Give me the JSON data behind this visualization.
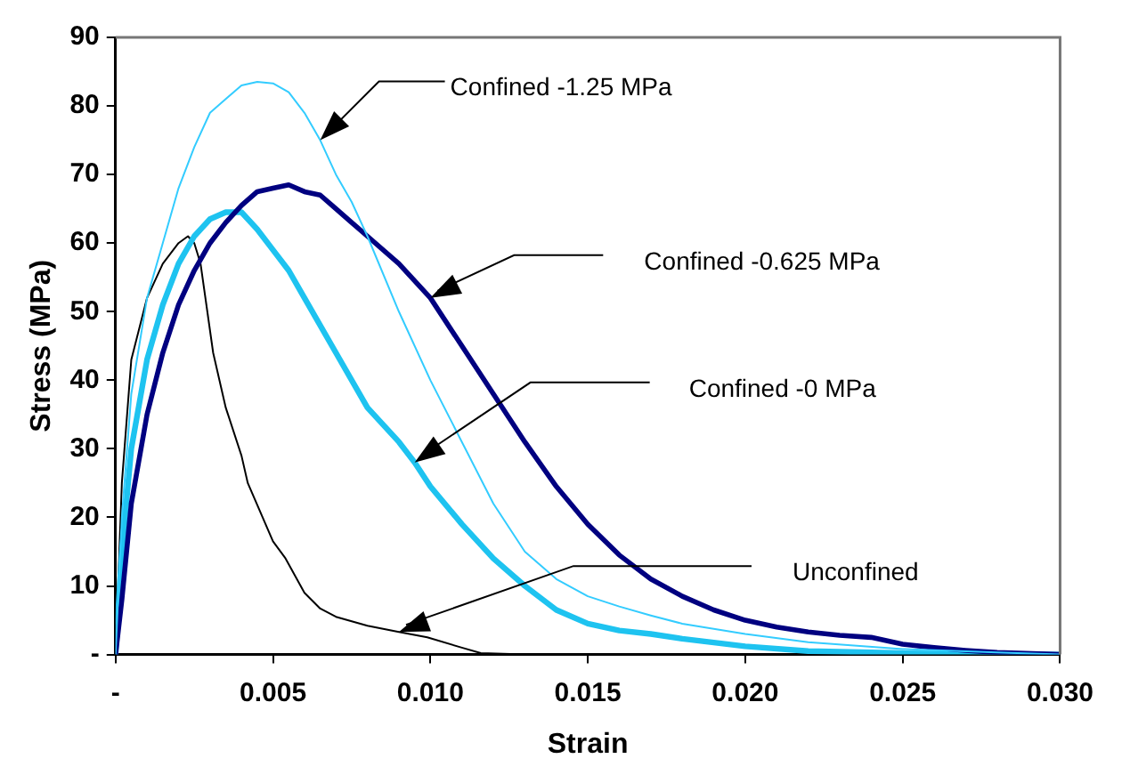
{
  "chart_data": {
    "type": "line",
    "xlabel": "Strain",
    "ylabel": "Stress (MPa)",
    "xlim": [
      0,
      0.03
    ],
    "ylim": [
      0,
      90
    ],
    "xticks": [
      {
        "value": 0,
        "label": "-"
      },
      0.005,
      {
        "value": 0.01,
        "label": "0.010"
      },
      0.015,
      {
        "value": 0.02,
        "label": "0.020"
      },
      0.025,
      {
        "value": 0.03,
        "label": "0.030"
      }
    ],
    "yticks": [
      {
        "value": 0,
        "label": "-"
      },
      10,
      20,
      30,
      40,
      50,
      60,
      70,
      80,
      90
    ],
    "grid": false,
    "legend": false,
    "marker": "none",
    "line_style": "solid",
    "series": [
      {
        "color": "#33ccff",
        "x": [
          0,
          0.0002,
          0.0005,
          0.001,
          0.0015,
          0.002,
          0.0025,
          0.003,
          0.0035,
          0.004,
          0.0045,
          0.005,
          0.0055,
          0.006,
          0.0065,
          0.007,
          0.0075,
          0.008,
          0.009,
          0.01,
          0.011,
          0.012,
          0.013,
          0.014,
          0.015,
          0.016,
          0.017,
          0.018,
          0.02,
          0.022,
          0.025,
          0.028,
          0.03
        ],
        "values": [
          0,
          20,
          38,
          52,
          60,
          68,
          74,
          79,
          81,
          83,
          83.5,
          83.3,
          82,
          79,
          75,
          70,
          66,
          61,
          50,
          40,
          31,
          22,
          15,
          11,
          8.5,
          7,
          5.7,
          4.5,
          3,
          1.8,
          0.8,
          0.3,
          0
        ]
      },
      {
        "color": "#000080",
        "x": [
          0,
          0.0002,
          0.0005,
          0.001,
          0.0015,
          0.002,
          0.0025,
          0.003,
          0.0035,
          0.004,
          0.0045,
          0.005,
          0.0055,
          0.006,
          0.0065,
          0.007,
          0.0075,
          0.008,
          0.009,
          0.01,
          0.011,
          0.012,
          0.013,
          0.014,
          0.015,
          0.016,
          0.017,
          0.018,
          0.019,
          0.02,
          0.021,
          0.022,
          0.023,
          0.024,
          0.025,
          0.026,
          0.027,
          0.028,
          0.03
        ],
        "values": [
          0,
          8,
          22,
          35,
          44,
          51,
          56,
          60,
          63,
          65.5,
          67.5,
          68,
          68.5,
          67.5,
          67,
          65,
          63,
          61,
          57,
          52,
          45,
          38,
          31,
          24.5,
          19,
          14.5,
          11,
          8.5,
          6.5,
          5,
          4,
          3.3,
          2.8,
          2.5,
          1.5,
          1,
          0.6,
          0.3,
          0
        ]
      },
      {
        "color": "#1ec3f0",
        "x": [
          0,
          0.0002,
          0.0005,
          0.001,
          0.0015,
          0.002,
          0.0025,
          0.003,
          0.0035,
          0.004,
          0.0045,
          0.005,
          0.0055,
          0.006,
          0.007,
          0.008,
          0.009,
          0.0095,
          0.01,
          0.011,
          0.012,
          0.013,
          0.014,
          0.015,
          0.016,
          0.017,
          0.018,
          0.02,
          0.022,
          0.025,
          0.03
        ],
        "values": [
          0,
          15,
          30,
          43,
          51,
          57,
          61,
          63.5,
          64.5,
          64.5,
          62,
          59,
          56,
          52,
          44,
          36,
          31,
          28,
          24.5,
          19,
          14,
          10,
          6.5,
          4.5,
          3.5,
          3,
          2.3,
          1.2,
          0.5,
          0.2,
          0
        ]
      },
      {
        "color": "#000000",
        "x": [
          0,
          0.0002,
          0.0005,
          0.001,
          0.0015,
          0.002,
          0.0023,
          0.0025,
          0.0027,
          0.0031,
          0.0035,
          0.004,
          0.0042,
          0.005,
          0.0054,
          0.006,
          0.0065,
          0.007,
          0.008,
          0.009,
          0.0099,
          0.011,
          0.0116,
          0.013,
          0.03
        ],
        "values": [
          0,
          25,
          43,
          52,
          57,
          60,
          61,
          60,
          57,
          44,
          36,
          29,
          25,
          16.5,
          14,
          9,
          6.7,
          5.5,
          4.2,
          3.3,
          2.5,
          1,
          0.2,
          0,
          0
        ]
      }
    ],
    "annotations": [
      "Confined -1.25 MPa",
      "Confined -0.625 MPa",
      "Confined -0 MPa",
      "Unconfined"
    ]
  }
}
